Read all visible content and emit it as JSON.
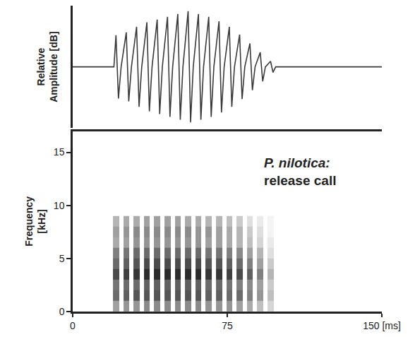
{
  "chart_data": [
    {
      "type": "line",
      "ylabel": "Relative Amplitude [dB]",
      "color": "#3a3a3a",
      "xlim": [
        0,
        150
      ],
      "xticks": [],
      "ylim": [
        -1.1,
        1.1
      ],
      "yticks": [],
      "x": [
        0,
        20,
        21,
        22.2,
        23.5,
        26,
        27.2,
        28.5,
        31,
        32.2,
        33.5,
        36,
        37.2,
        38.5,
        41,
        42.2,
        43.5,
        46,
        47.2,
        48.5,
        51,
        52.2,
        53.5,
        56,
        57.2,
        58.5,
        61,
        62.2,
        63.5,
        66,
        67.2,
        68.5,
        71,
        72.2,
        73.5,
        76,
        77.2,
        78.5,
        81,
        82.2,
        83.5,
        86,
        87.2,
        88.5,
        91,
        92.2,
        93.5,
        96,
        97.2,
        98.5,
        150
      ],
      "values": [
        0,
        0,
        0.57,
        -0.57,
        0,
        0.62,
        -0.62,
        0,
        0.72,
        -0.72,
        0,
        0.8,
        -0.8,
        0,
        0.85,
        -0.85,
        0,
        0.9,
        -0.9,
        0,
        0.95,
        -0.95,
        0,
        1,
        -1,
        0,
        0.95,
        -0.95,
        0,
        0.9,
        -0.9,
        0,
        0.82,
        -0.82,
        0,
        0.72,
        -0.72,
        0,
        0.58,
        -0.58,
        0,
        0.42,
        -0.42,
        0,
        0.26,
        -0.26,
        0,
        0.1,
        -0.1,
        0,
        0
      ]
    },
    {
      "type": "heatmap",
      "ylabel": "Frequency [kHz]",
      "annotation": [
        "P. nilotica:",
        "release call"
      ],
      "color": "#2b2b2b",
      "xlim": [
        0,
        150
      ],
      "xticks": [
        0,
        75,
        {
          "value": 150,
          "label": "150 [ms]"
        }
      ],
      "ylim": [
        0,
        17
      ],
      "yticks": [
        0,
        5,
        10,
        15
      ],
      "zlim": [
        0,
        1
      ],
      "x": [
        21,
        26,
        31,
        36,
        41,
        46,
        51,
        56,
        61,
        66,
        71,
        76,
        81,
        86,
        91,
        96
      ],
      "y": [
        0.5,
        1.5,
        2.5,
        3.5,
        4.5,
        5.5,
        6.5,
        7.5,
        8.5
      ],
      "z": [
        [
          0.45,
          0.5,
          0.5,
          0.55,
          0.55,
          0.55,
          0.55,
          0.55,
          0.55,
          0.5,
          0.5,
          0.5,
          0.45,
          0.4,
          0.3,
          0.2
        ],
        [
          0.7,
          0.75,
          0.8,
          0.8,
          0.8,
          0.8,
          0.8,
          0.8,
          0.8,
          0.75,
          0.75,
          0.7,
          0.7,
          0.6,
          0.5,
          0.3
        ],
        [
          0.65,
          0.7,
          0.7,
          0.75,
          0.75,
          0.75,
          0.75,
          0.75,
          0.75,
          0.7,
          0.7,
          0.65,
          0.6,
          0.55,
          0.45,
          0.25
        ],
        [
          0.85,
          0.9,
          0.95,
          1,
          1,
          1,
          1,
          1,
          1,
          0.95,
          0.95,
          0.9,
          0.85,
          0.75,
          0.6,
          0.35
        ],
        [
          0.7,
          0.75,
          0.8,
          0.85,
          0.85,
          0.85,
          0.85,
          0.85,
          0.85,
          0.8,
          0.8,
          0.75,
          0.7,
          0.6,
          0.45,
          0.25
        ],
        [
          0.6,
          0.65,
          0.7,
          0.7,
          0.7,
          0.7,
          0.7,
          0.7,
          0.7,
          0.65,
          0.65,
          0.6,
          0.55,
          0.45,
          0.35,
          0.15
        ],
        [
          0.4,
          0.45,
          0.5,
          0.5,
          0.5,
          0.5,
          0.5,
          0.5,
          0.5,
          0.45,
          0.45,
          0.4,
          0.35,
          0.3,
          0.2,
          0.1
        ],
        [
          0.45,
          0.5,
          0.55,
          0.55,
          0.55,
          0.55,
          0.55,
          0.55,
          0.5,
          0.5,
          0.45,
          0.4,
          0.35,
          0.25,
          0.15,
          0.05
        ],
        [
          0.35,
          0.4,
          0.4,
          0.45,
          0.45,
          0.45,
          0.45,
          0.4,
          0.4,
          0.35,
          0.35,
          0.3,
          0.25,
          0.15,
          0.1,
          0.05
        ]
      ]
    }
  ]
}
